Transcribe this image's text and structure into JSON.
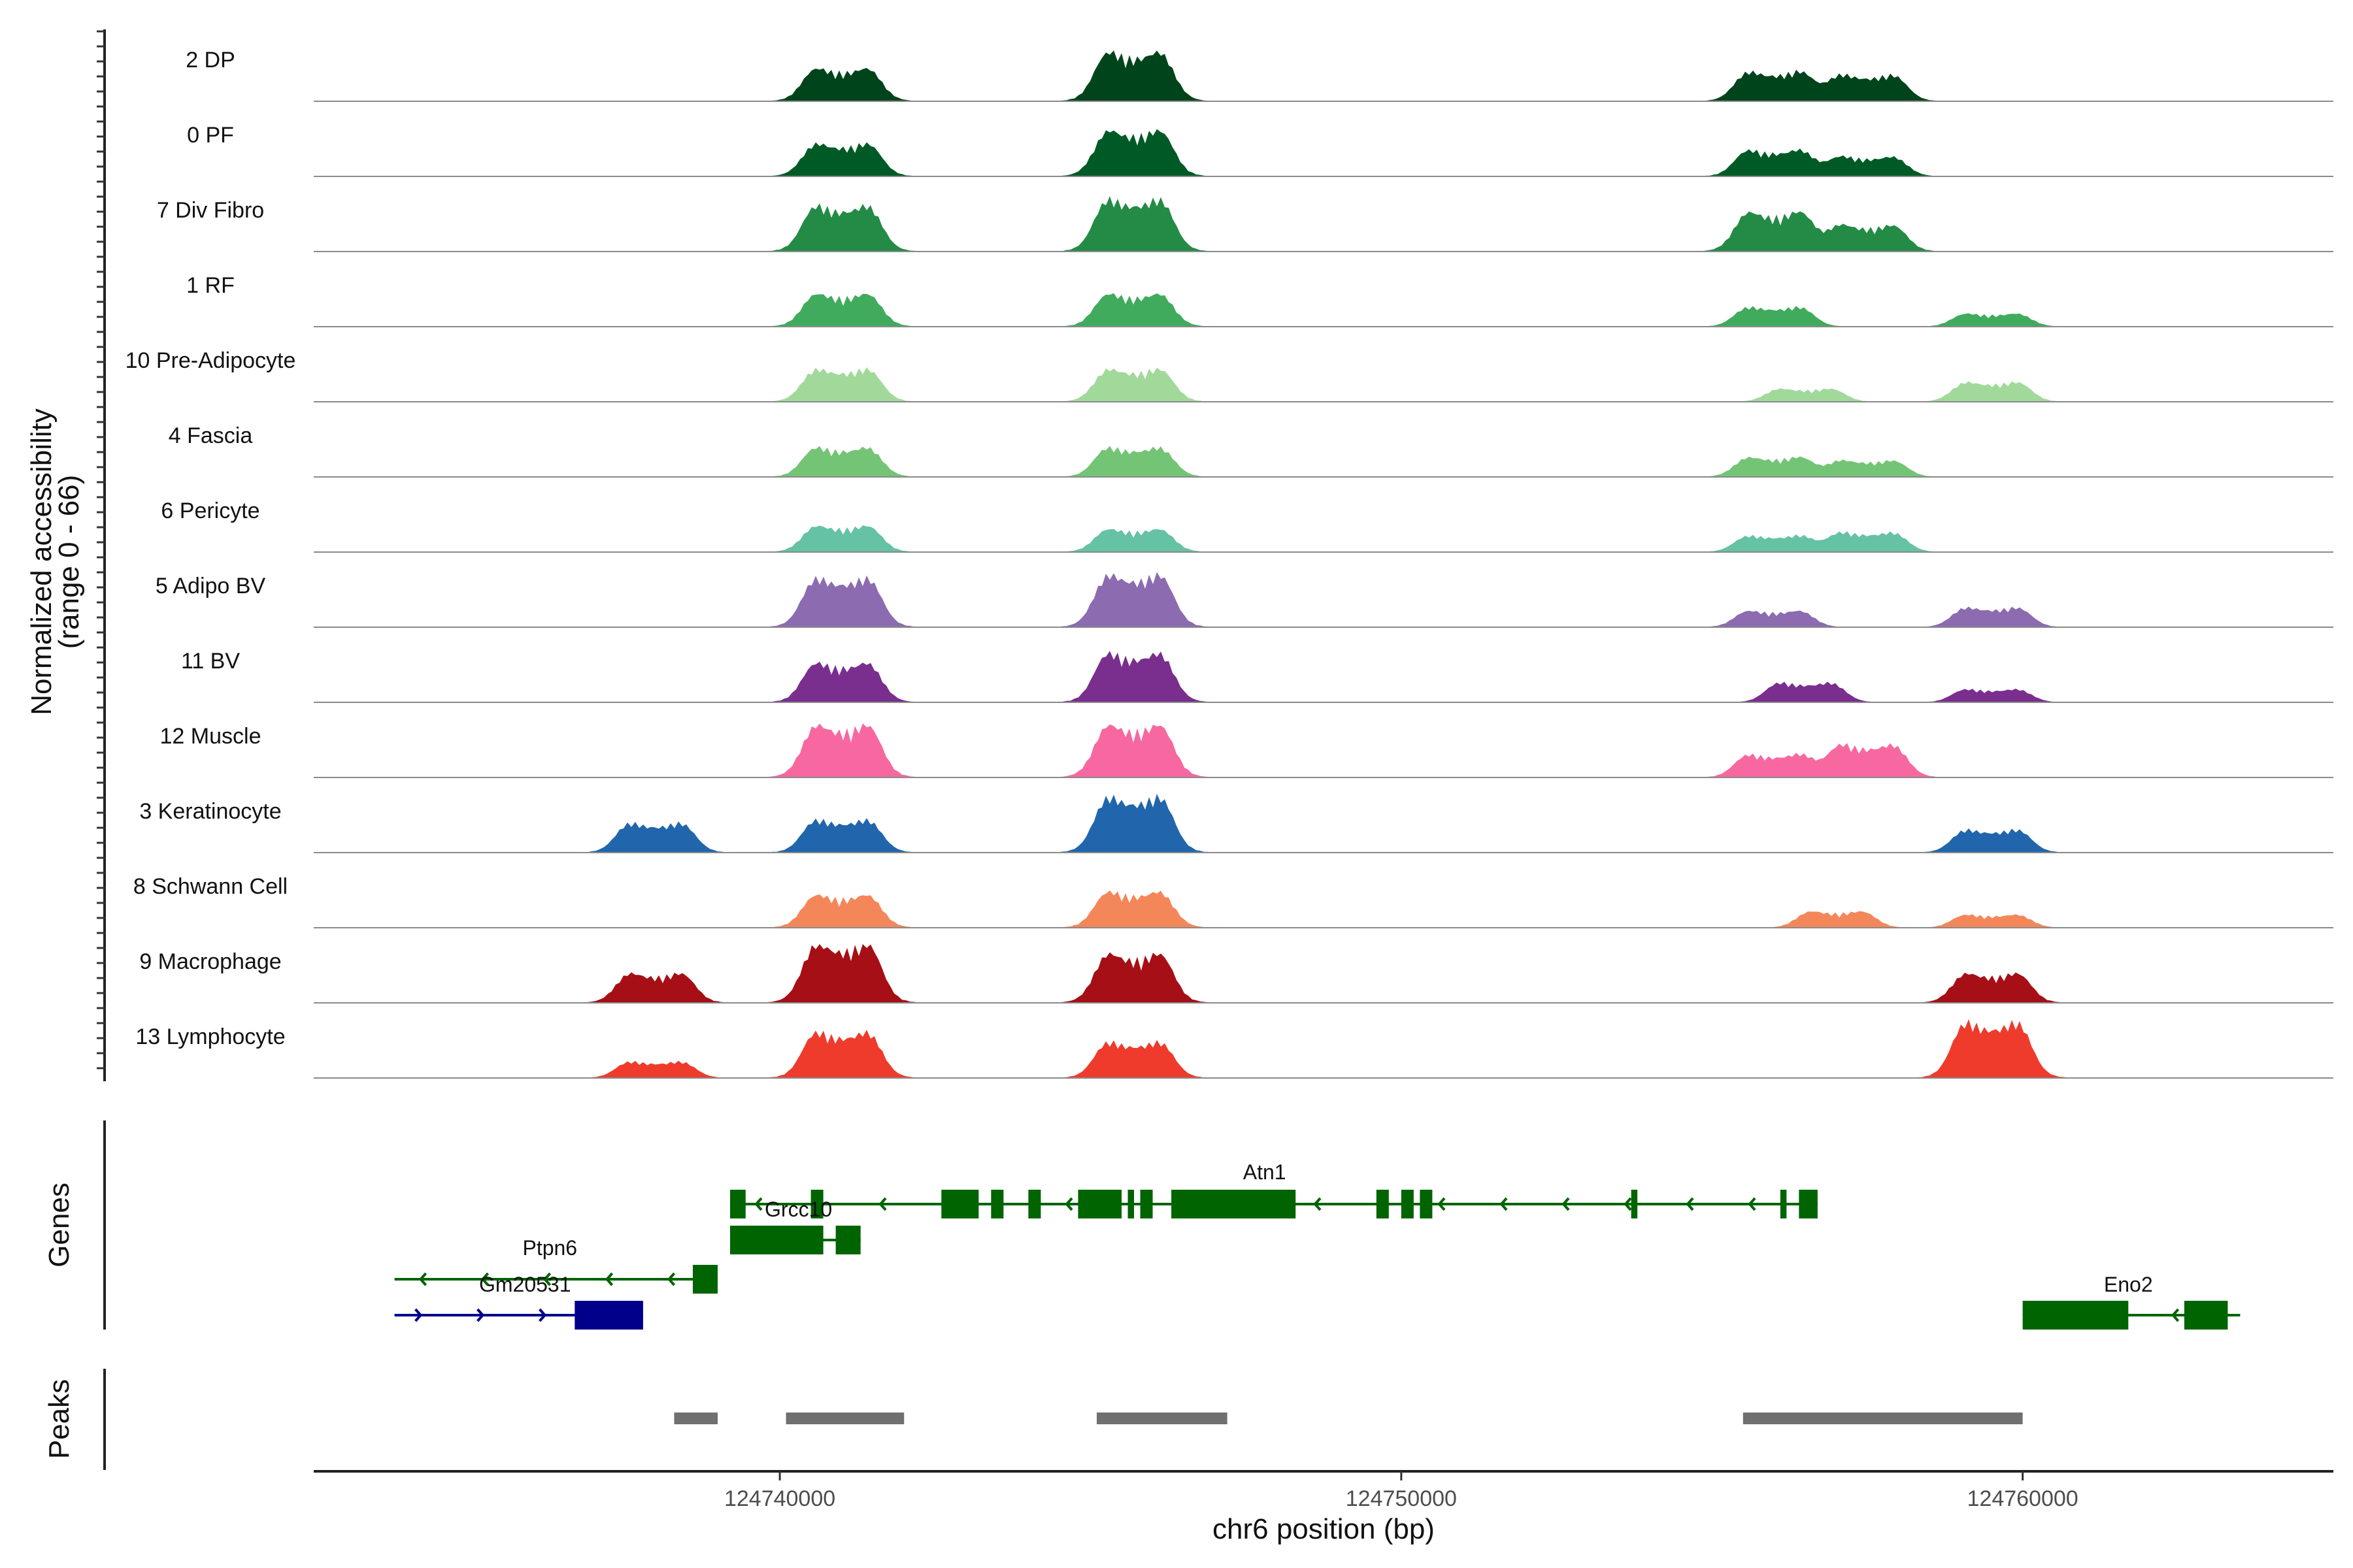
{
  "chart_data": {
    "type": "coverage",
    "chromosome": "chr6",
    "xlim": [
      124732500,
      124765000
    ],
    "xlabel": "chr6 position (bp)",
    "x_ticks": [
      124740000,
      124750000,
      124760000
    ],
    "x_tick_labels": [
      "124740000",
      "124750000",
      "124760000"
    ],
    "ylabel": "Normalized accessibility",
    "ylabel_range": "(range 0 - 66)",
    "ylim": [
      0,
      66
    ],
    "tracks": [
      {
        "name": "2 DP",
        "color": "#00441B",
        "peaks": [
          [
            124741000,
            0.5
          ],
          [
            124745700,
            0.75
          ],
          [
            124756000,
            0.45
          ],
          [
            124757500,
            0.4
          ]
        ]
      },
      {
        "name": "0 PF",
        "color": "#005A25",
        "peaks": [
          [
            124741000,
            0.5
          ],
          [
            124745700,
            0.7
          ],
          [
            124756000,
            0.4
          ],
          [
            124757500,
            0.3
          ]
        ]
      },
      {
        "name": "7 Div Fibro",
        "color": "#238B45",
        "peaks": [
          [
            124741000,
            0.7
          ],
          [
            124745700,
            0.8
          ],
          [
            124756000,
            0.6
          ],
          [
            124757500,
            0.4
          ]
        ]
      },
      {
        "name": "1 RF",
        "color": "#41AB5D",
        "peaks": [
          [
            124741000,
            0.5
          ],
          [
            124745700,
            0.5
          ],
          [
            124756000,
            0.3
          ],
          [
            124759500,
            0.2
          ]
        ]
      },
      {
        "name": "10 Pre-Adipocyte",
        "color": "#A1D99B",
        "peaks": [
          [
            124741000,
            0.5
          ],
          [
            124745700,
            0.5
          ],
          [
            124756500,
            0.2
          ],
          [
            124759500,
            0.3
          ]
        ]
      },
      {
        "name": "4 Fascia",
        "color": "#74C476",
        "peaks": [
          [
            124741000,
            0.45
          ],
          [
            124745700,
            0.45
          ],
          [
            124756000,
            0.3
          ],
          [
            124757500,
            0.25
          ]
        ]
      },
      {
        "name": "6 Pericyte",
        "color": "#66C2A4",
        "peaks": [
          [
            124741000,
            0.4
          ],
          [
            124745700,
            0.35
          ],
          [
            124756000,
            0.25
          ],
          [
            124757500,
            0.3
          ]
        ]
      },
      {
        "name": "5 Adipo BV",
        "color": "#8C6BB1",
        "peaks": [
          [
            124741000,
            0.75
          ],
          [
            124745700,
            0.8
          ],
          [
            124756000,
            0.25
          ],
          [
            124759500,
            0.3
          ]
        ]
      },
      {
        "name": "11 BV",
        "color": "#7A2E8E",
        "peaks": [
          [
            124741000,
            0.6
          ],
          [
            124745700,
            0.75
          ],
          [
            124756500,
            0.3
          ],
          [
            124759500,
            0.2
          ]
        ]
      },
      {
        "name": "12 Muscle",
        "color": "#F768A1",
        "peaks": [
          [
            124741000,
            0.8
          ],
          [
            124745700,
            0.8
          ],
          [
            124756000,
            0.35
          ],
          [
            124757500,
            0.5
          ]
        ]
      },
      {
        "name": "3 Keratinocyte",
        "color": "#2166AC",
        "peaks": [
          [
            124738000,
            0.45
          ],
          [
            124741000,
            0.5
          ],
          [
            124745700,
            0.85
          ],
          [
            124759500,
            0.35
          ]
        ]
      },
      {
        "name": "8 Schwann Cell",
        "color": "#F4875A",
        "peaks": [
          [
            124741000,
            0.5
          ],
          [
            124745700,
            0.55
          ],
          [
            124757000,
            0.25
          ],
          [
            124759500,
            0.2
          ]
        ]
      },
      {
        "name": "9 Macrophage",
        "color": "#A50F15",
        "peaks": [
          [
            124738000,
            0.45
          ],
          [
            124741000,
            0.9
          ],
          [
            124745700,
            0.75
          ],
          [
            124759500,
            0.45
          ]
        ]
      },
      {
        "name": "13 Lymphocyte",
        "color": "#EF3B2C",
        "peaks": [
          [
            124738000,
            0.25
          ],
          [
            124741000,
            0.7
          ],
          [
            124745700,
            0.55
          ],
          [
            124759500,
            0.85
          ]
        ]
      }
    ],
    "genes_panel_label": "Genes",
    "genes": [
      {
        "name": "Atn1",
        "strand": "-",
        "color": "#006400",
        "start": 124739200,
        "end": 124756700,
        "row": 0,
        "exons": [
          [
            124739200,
            124739450
          ],
          [
            124740500,
            124740700
          ],
          [
            124742600,
            124743200
          ],
          [
            124743400,
            124743600
          ],
          [
            124744000,
            124744200
          ],
          [
            124744800,
            124745500
          ],
          [
            124745600,
            124745700
          ],
          [
            124745800,
            124746000
          ],
          [
            124746300,
            124748300
          ],
          [
            124749600,
            124749800
          ],
          [
            124750000,
            124750200
          ],
          [
            124750300,
            124750500
          ],
          [
            124753700,
            124753800
          ],
          [
            124756100,
            124756200
          ],
          [
            124756400,
            124756700
          ]
        ]
      },
      {
        "name": "Grcc10",
        "strand": "+",
        "color": "#006400",
        "start": 124739200,
        "end": 124741300,
        "row": 1,
        "exons": [
          [
            124739200,
            124740700
          ],
          [
            124740900,
            124741300
          ]
        ]
      },
      {
        "name": "Ptpn6",
        "strand": "-",
        "color": "#006400",
        "start": 124733800,
        "end": 124739000,
        "row": 2,
        "exons": [
          [
            124738600,
            124739000
          ]
        ]
      },
      {
        "name": "Gm20531",
        "strand": "+",
        "color": "#00008B",
        "start": 124733800,
        "end": 124737800,
        "row": 3,
        "exons": [
          [
            124736700,
            124737800
          ]
        ]
      },
      {
        "name": "Eno2",
        "strand": "-",
        "color": "#006400",
        "start": 124760000,
        "end": 124763500,
        "row": 3,
        "exons": [
          [
            124760000,
            124761700
          ],
          [
            124762600,
            124763300
          ]
        ]
      }
    ],
    "peaks_panel_label": "Peaks",
    "peak_regions": [
      [
        124738300,
        124739000
      ],
      [
        124740100,
        124742000
      ],
      [
        124745100,
        124747200
      ],
      [
        124755500,
        124760000
      ]
    ]
  }
}
